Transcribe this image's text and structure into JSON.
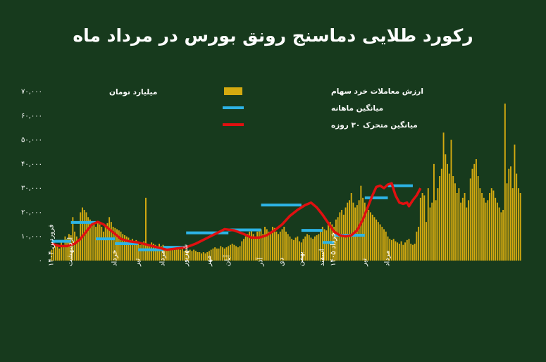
{
  "chart_data": {
    "type": "bar",
    "title": "رکورد طلایی دماسنج رونق بورس در مرداد ماه",
    "ylabel": "میلیارد تومان",
    "ylim": [
      0,
      70000
    ],
    "yticks": [
      0,
      10000,
      20000,
      30000,
      40000,
      50000,
      60000,
      70000
    ],
    "ytick_labels": [
      "۰",
      "۱۰,۰۰۰",
      "۲۰,۰۰۰",
      "۳۰,۰۰۰",
      "۴۰,۰۰۰",
      "۵۰,۰۰۰",
      "۶۰,۰۰۰",
      "۷۰,۰۰۰"
    ],
    "grid": false,
    "legend_position": "top-center",
    "colors": {
      "background": "#173a1d",
      "bars": "#d4aa10",
      "monthly": "#2db4e6",
      "moving_avg": "#e01010",
      "text": "#ffffff"
    },
    "months": [
      "فروردین ۱۴۰۴",
      "اردیبهشت",
      "خرداد",
      "تیر",
      "مرداد",
      "شهریور",
      "مهر",
      "آبان",
      "آذر",
      "دی",
      "بهمن",
      "اسفند",
      "خرداد ۱۴۰۵",
      "تیر",
      "مرداد"
    ],
    "series": [
      {
        "name": "ارزش معاملات خرد سهام",
        "kind": "bar",
        "values": [
          4500,
          5500,
          7000,
          6500,
          5000,
          8000,
          6000,
          10000,
          9000,
          11000,
          10500,
          18000,
          12000,
          10000,
          8000,
          20000,
          22000,
          21000,
          20000,
          18000,
          17000,
          16000,
          15000,
          14000,
          16000,
          15000,
          14000,
          12000,
          14000,
          15500,
          18000,
          16000,
          14000,
          13500,
          13000,
          12500,
          12000,
          11000,
          10500,
          10000,
          9500,
          8500,
          9000,
          8000,
          8500,
          7500,
          6500,
          7000,
          8000,
          26000,
          7000,
          6500,
          7500,
          7000,
          6500,
          6000,
          7000,
          6000,
          6500,
          6000,
          5500,
          6000,
          5000,
          5500,
          5000,
          4500,
          5000,
          4500,
          5000,
          4000,
          4500,
          4000,
          4500,
          4000,
          4500,
          4000,
          3500,
          3500,
          3000,
          3500,
          3000,
          3500,
          4000,
          4500,
          5000,
          5500,
          5000,
          5000,
          6000,
          5500,
          5000,
          5500,
          6000,
          6500,
          7000,
          6500,
          6000,
          5500,
          6000,
          8000,
          9000,
          10000,
          11000,
          12000,
          13000,
          11000,
          10000,
          12000,
          12500,
          13000,
          11000,
          14000,
          13000,
          12000,
          11500,
          14000,
          13500,
          12000,
          11000,
          12000,
          13000,
          14000,
          12000,
          11000,
          10000,
          9000,
          8500,
          9500,
          10000,
          8000,
          7500,
          9000,
          10000,
          11000,
          10500,
          9500,
          9000,
          10000,
          10500,
          11000,
          12000,
          14000,
          13000,
          12500,
          15000,
          16000,
          15000,
          14000,
          17000,
          18000,
          20000,
          21000,
          19000,
          22000,
          24000,
          25000,
          28000,
          24000,
          22000,
          23000,
          25000,
          31000,
          26000,
          24000,
          22000,
          21000,
          20000,
          19000,
          18000,
          17000,
          16000,
          15000,
          14000,
          13000,
          12000,
          10000,
          9000,
          8500,
          9000,
          8000,
          7500,
          7000,
          8000,
          6500,
          7500,
          8500,
          9000,
          7000,
          6500,
          7000,
          12000,
          14000,
          26000,
          28000,
          27000,
          16000,
          30000,
          22000,
          24000,
          40000,
          25000,
          30000,
          35000,
          38000,
          53000,
          44000,
          40000,
          36000,
          50000,
          35000,
          32000,
          28000,
          30000,
          24000,
          26000,
          28000,
          22000,
          25000,
          34000,
          38000,
          40000,
          42000,
          35000,
          30000,
          28000,
          26000,
          24000,
          25000,
          28000,
          30000,
          29000,
          26000,
          24000,
          22000,
          20000,
          21000,
          65000,
          32000,
          38000,
          39000,
          30000,
          48000,
          36000,
          30000,
          28000
        ]
      },
      {
        "name": "میانگین ماهانه",
        "kind": "step",
        "segments": [
          {
            "start": 0,
            "end": 10,
            "value": 8000
          },
          {
            "start": 10,
            "end": 23,
            "value": 15800
          },
          {
            "start": 23,
            "end": 33,
            "value": 9000
          },
          {
            "start": 33,
            "end": 45,
            "value": 7000
          },
          {
            "start": 45,
            "end": 58,
            "value": 4500
          },
          {
            "start": 58,
            "end": 70,
            "value": 5500
          },
          {
            "start": 70,
            "end": 92,
            "value": 11500
          },
          {
            "start": 92,
            "end": 109,
            "value": 12700
          },
          {
            "start": 109,
            "end": 130,
            "value": 23000
          },
          {
            "start": 130,
            "end": 141,
            "value": 12500
          },
          {
            "start": 141,
            "end": 147,
            "value": 7500
          },
          {
            "start": 147,
            "end": 163,
            "value": 10500
          },
          {
            "start": 163,
            "end": 175,
            "value": 26000
          },
          {
            "start": 175,
            "end": 188,
            "value": 31000
          }
        ]
      },
      {
        "name": "میانگین متحرک ۳۰ روزه",
        "kind": "line",
        "points": [
          [
            0,
            7000
          ],
          [
            4,
            6000
          ],
          [
            8,
            6000
          ],
          [
            12,
            7000
          ],
          [
            15,
            9000
          ],
          [
            18,
            12000
          ],
          [
            21,
            15000
          ],
          [
            24,
            16000
          ],
          [
            27,
            15000
          ],
          [
            30,
            13000
          ],
          [
            33,
            11000
          ],
          [
            36,
            9000
          ],
          [
            40,
            8000
          ],
          [
            45,
            7500
          ],
          [
            50,
            6500
          ],
          [
            55,
            5500
          ],
          [
            60,
            4500
          ],
          [
            65,
            5000
          ],
          [
            70,
            5500
          ],
          [
            75,
            7000
          ],
          [
            80,
            9000
          ],
          [
            85,
            11000
          ],
          [
            90,
            13000
          ],
          [
            95,
            12500
          ],
          [
            100,
            11000
          ],
          [
            104,
            9500
          ],
          [
            108,
            9500
          ],
          [
            112,
            10500
          ],
          [
            116,
            12500
          ],
          [
            120,
            15000
          ],
          [
            124,
            18500
          ],
          [
            128,
            21000
          ],
          [
            132,
            23000
          ],
          [
            135,
            24000
          ],
          [
            138,
            22000
          ],
          [
            141,
            19000
          ],
          [
            144,
            15500
          ],
          [
            147,
            12000
          ],
          [
            150,
            10500
          ],
          [
            153,
            10000
          ],
          [
            156,
            10500
          ],
          [
            159,
            12500
          ],
          [
            162,
            17000
          ],
          [
            165,
            23000
          ],
          [
            167,
            27000
          ],
          [
            169,
            30500
          ],
          [
            171,
            31000
          ],
          [
            173,
            30000
          ],
          [
            175,
            31500
          ],
          [
            177,
            32000
          ],
          [
            179,
            27000
          ],
          [
            181,
            24000
          ],
          [
            183,
            23500
          ],
          [
            185,
            24000
          ],
          [
            186,
            22500
          ],
          [
            188,
            25000
          ],
          [
            190,
            27000
          ],
          [
            192,
            30000
          ]
        ]
      }
    ]
  }
}
